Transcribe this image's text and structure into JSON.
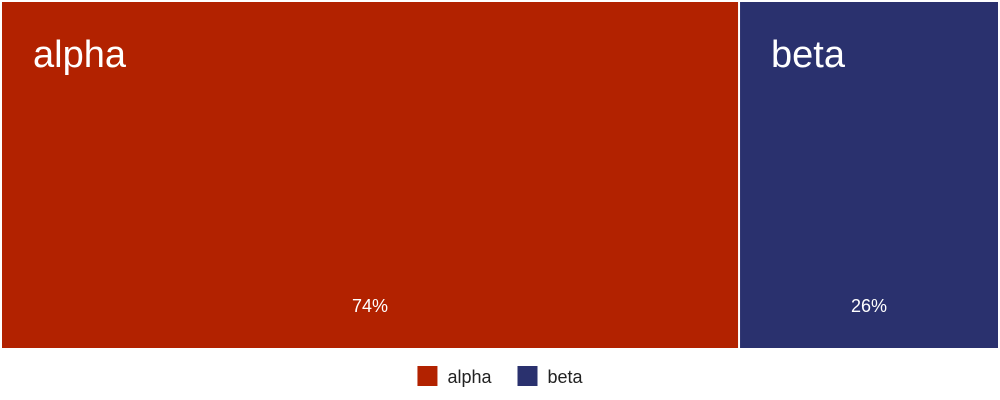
{
  "chart_data": {
    "type": "bar",
    "subtype": "100% stacked (treemap-style proportional segments)",
    "categories": [
      "alpha",
      "beta"
    ],
    "values": [
      74,
      26
    ],
    "value_labels": [
      "74%",
      "26%"
    ],
    "colors": [
      "#b22200",
      "#2a316e"
    ],
    "legend": {
      "placement": "bottom-center",
      "entries": [
        "alpha",
        "beta"
      ]
    },
    "grid": false
  }
}
